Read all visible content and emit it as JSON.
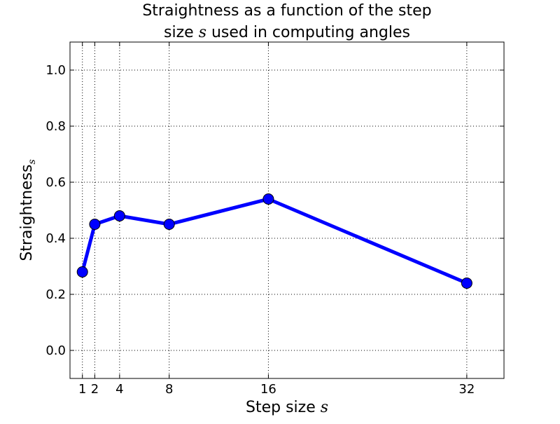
{
  "chart_data": {
    "type": "line",
    "title": {
      "line1": "Straightness as a function of the step",
      "line2_prefix": "size ",
      "line2_var": "s",
      "line2_suffix": " used in computing angles"
    },
    "xlabel": {
      "text": "Step size ",
      "var": "s"
    },
    "ylabel": {
      "text": "Straightness",
      "subscript": "s"
    },
    "x": [
      1,
      2,
      4,
      8,
      16,
      32
    ],
    "series": [
      {
        "values": [
          0.28,
          0.45,
          0.48,
          0.45,
          0.54,
          0.24
        ]
      }
    ],
    "xticks": [
      "1",
      "2",
      "4",
      "8",
      "16",
      "32"
    ],
    "yticks": [
      "0.0",
      "0.2",
      "0.4",
      "0.6",
      "0.8",
      "1.0"
    ],
    "xlim": [
      0,
      35
    ],
    "ylim": [
      -0.1,
      1.1
    ],
    "grid": true,
    "line_color": "#0000ff"
  }
}
